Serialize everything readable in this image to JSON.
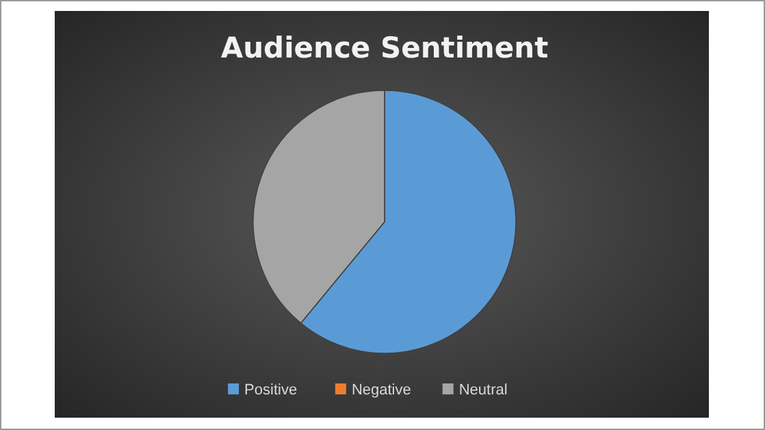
{
  "chart_data": {
    "type": "pie",
    "title": "Audience Sentiment",
    "categories": [
      "Positive",
      "Negative",
      "Neutral"
    ],
    "values": [
      61,
      0,
      39
    ],
    "colors": [
      "#5b9bd5",
      "#ed7d31",
      "#a5a5a5"
    ],
    "legend": "bottom"
  }
}
